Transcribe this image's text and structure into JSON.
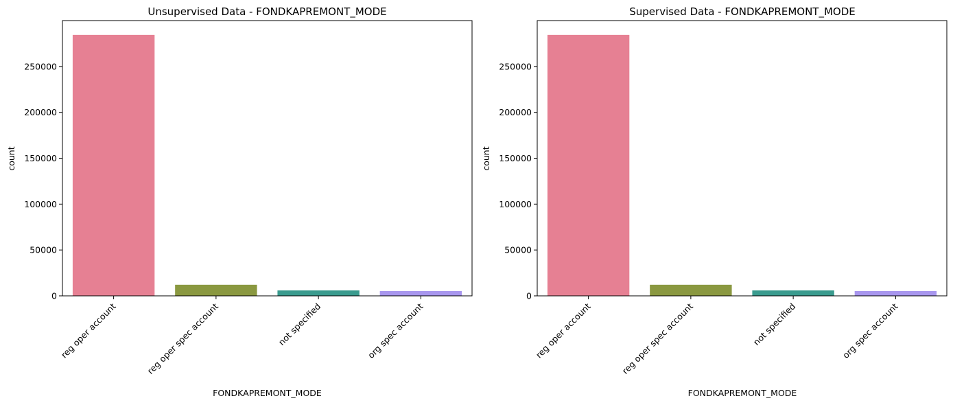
{
  "chart_data": [
    {
      "type": "bar",
      "title": "Unsupervised Data - FONDKAPREMONT_MODE",
      "xlabel": "FONDKAPREMONT_MODE",
      "ylabel": "count",
      "categories": [
        "reg oper account",
        "reg oper spec account",
        "not specified",
        "org spec account"
      ],
      "values": [
        284400,
        12100,
        5900,
        5300
      ],
      "colors": [
        "#e68093",
        "#8a9840",
        "#3a9b8e",
        "#a896ee"
      ],
      "ylim": [
        0,
        300000
      ],
      "yticks": [
        0,
        50000,
        100000,
        150000,
        200000,
        250000
      ],
      "grid": false
    },
    {
      "type": "bar",
      "title": "Supervised Data - FONDKAPREMONT_MODE",
      "xlabel": "FONDKAPREMONT_MODE",
      "ylabel": "count",
      "categories": [
        "reg oper account",
        "reg oper spec account",
        "not specified",
        "org spec account"
      ],
      "values": [
        284400,
        12100,
        5900,
        5300
      ],
      "colors": [
        "#e68093",
        "#8a9840",
        "#3a9b8e",
        "#a896ee"
      ],
      "ylim": [
        0,
        300000
      ],
      "yticks": [
        0,
        50000,
        100000,
        150000,
        200000,
        250000
      ],
      "grid": false
    }
  ]
}
